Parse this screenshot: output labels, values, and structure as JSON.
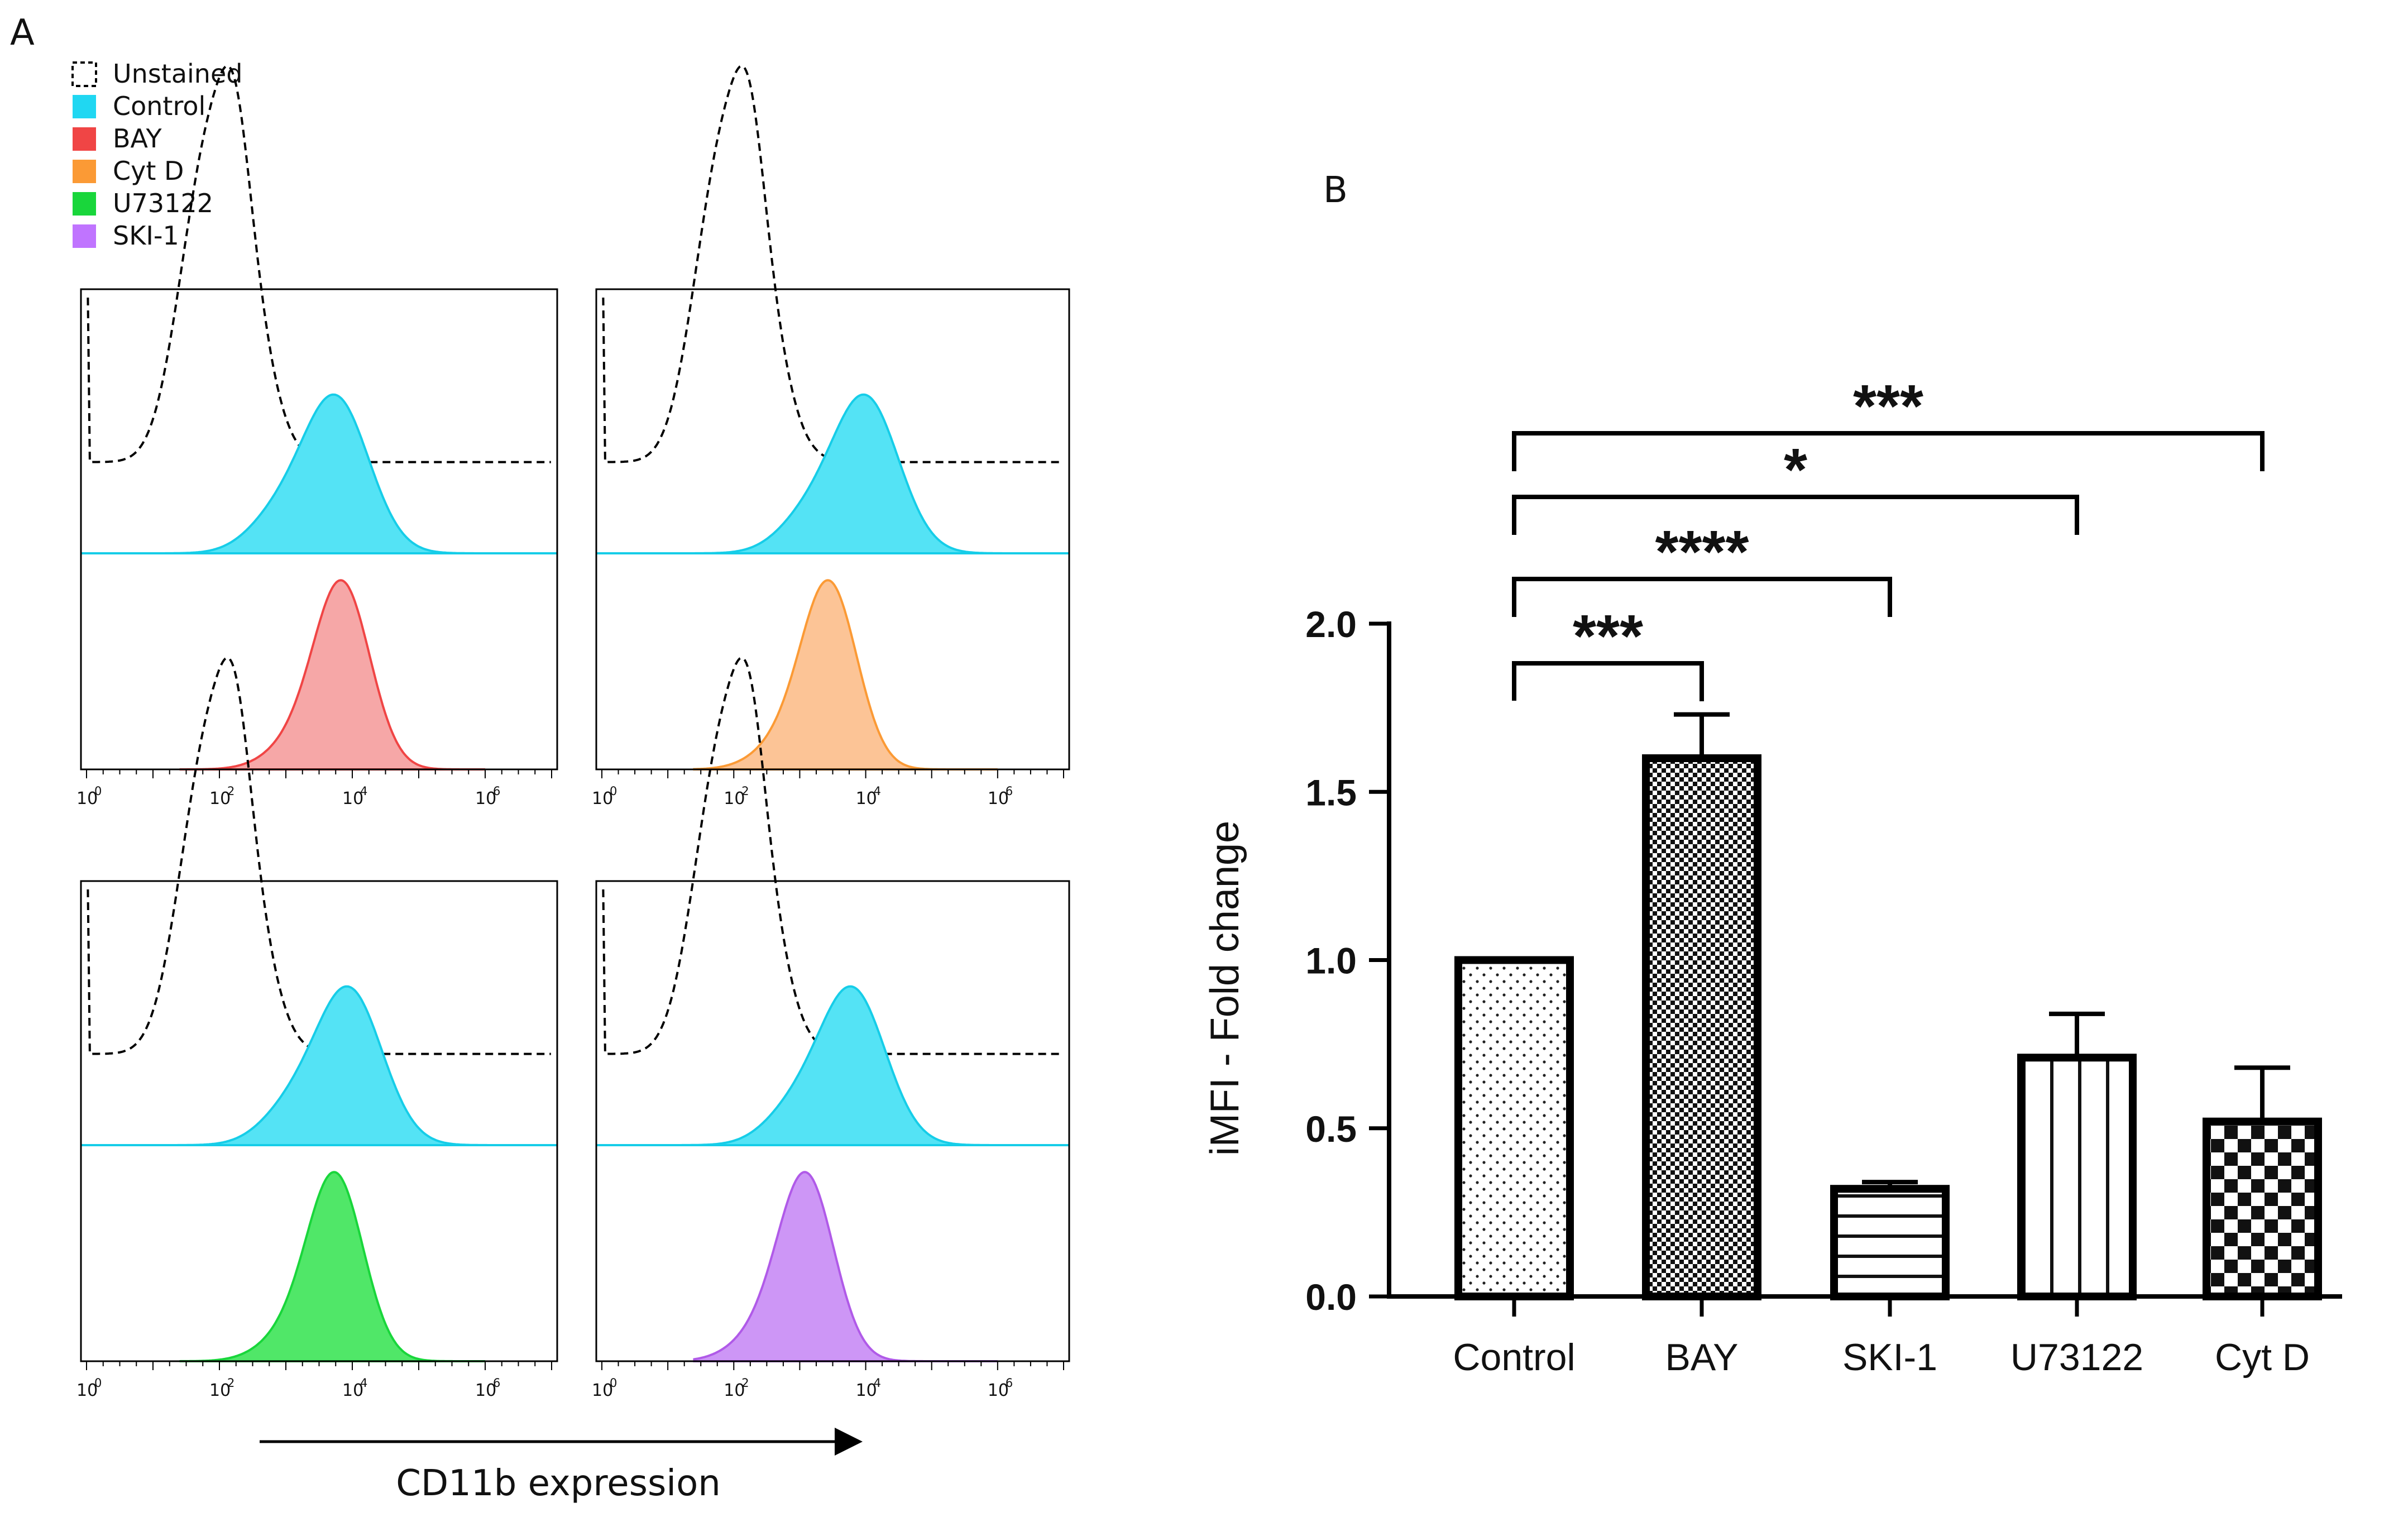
{
  "panel_a": {
    "label": "A",
    "legend": [
      {
        "label": "Unstained",
        "color": "#ffffff",
        "dashed": true
      },
      {
        "label": "Control",
        "color": "#20d7f2"
      },
      {
        "label": "BAY",
        "color": "#f04545"
      },
      {
        "label": "Cyt D",
        "color": "#fb9a35"
      },
      {
        "label": "U73122",
        "color": "#19d63b"
      },
      {
        "label": "SKI-1",
        "color": "#c074ff"
      }
    ],
    "x_axis_label": "CD11b expression",
    "tick_base": "10",
    "tick_exponents": [
      "0",
      "2",
      "4",
      "6"
    ],
    "histograms": [
      {
        "unstained_peak_log": 2.1,
        "control_peak_log": 3.75,
        "treatment": "BAY",
        "treatment_color": "#f04545",
        "treatment_fill": "#f5a0a0",
        "treatment_peak_log": 3.85
      },
      {
        "unstained_peak_log": 2.1,
        "control_peak_log": 4.0,
        "treatment": "Cyt D",
        "treatment_color": "#fb9a35",
        "treatment_fill": "#fcbf8d",
        "treatment_peak_log": 3.45
      },
      {
        "unstained_peak_log": 2.1,
        "control_peak_log": 3.95,
        "treatment": "U73122",
        "treatment_color": "#19d63b",
        "treatment_fill": "#41e55b",
        "treatment_peak_log": 3.75
      },
      {
        "unstained_peak_log": 2.1,
        "control_peak_log": 3.8,
        "treatment": "SKI-1",
        "treatment_color": "#b05ae8",
        "treatment_fill": "#c98df5",
        "treatment_peak_log": 3.1
      }
    ]
  },
  "panel_b": {
    "label": "B"
  },
  "chart_data": {
    "type": "bar",
    "title": "",
    "xlabel": "",
    "ylabel": "iMFI - Fold change",
    "ylim": [
      0.0,
      2.0
    ],
    "yticks": [
      "0.0",
      "0.5",
      "1.0",
      "1.5",
      "2.0"
    ],
    "categories": [
      "Control",
      "BAY",
      "SKI-1",
      "U73122",
      "Cyt D"
    ],
    "values": [
      1.0,
      1.6,
      0.32,
      0.71,
      0.52
    ],
    "errors": [
      0.0,
      0.13,
      0.02,
      0.13,
      0.16
    ],
    "patterns": [
      "dots",
      "checker-fine",
      "horizontal-lines",
      "vertical-lines",
      "checker-coarse"
    ],
    "significance": [
      {
        "from": "Control",
        "to": "BAY",
        "label": "***"
      },
      {
        "from": "Control",
        "to": "SKI-1",
        "label": "****"
      },
      {
        "from": "Control",
        "to": "U73122",
        "label": "*"
      },
      {
        "from": "Control",
        "to": "Cyt D",
        "label": "***"
      }
    ]
  }
}
